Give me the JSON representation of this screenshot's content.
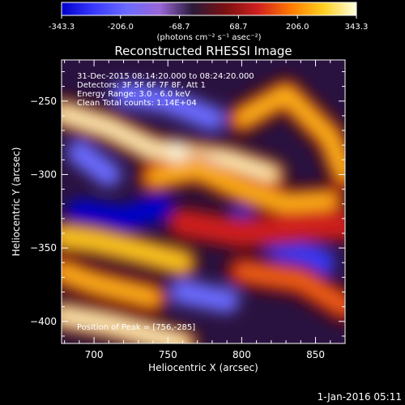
{
  "colorbar": {
    "min": -343.3,
    "max": 343.3,
    "ticks": [
      "-343.3",
      "-206.0",
      "-68.7",
      "68.7",
      "206.0",
      "343.3"
    ],
    "units": "(photons cm⁻² s⁻¹ asec⁻²)",
    "colors": [
      "#0000cc",
      "#3a3aff",
      "#6b6bff",
      "#9a66d6",
      "#2a1a3a",
      "#7a1010",
      "#d02020",
      "#ff7a00",
      "#ffd020",
      "#ffffe0"
    ]
  },
  "chart_data": {
    "type": "heatmap",
    "title": "Reconstructed RHESSI Image",
    "xlabel": "Heliocentric X (arcsec)",
    "ylabel": "Heliocentric Y (arcsec)",
    "xlim": [
      678,
      870
    ],
    "ylim": [
      -415,
      -222
    ],
    "xticks": [
      700,
      750,
      800,
      850
    ],
    "yticks": [
      -250,
      -300,
      -350,
      -400
    ],
    "xtick_labels": [
      "700",
      "750",
      "800",
      "850"
    ],
    "ytick_labels": [
      "−250",
      "−300",
      "−350",
      "−400"
    ],
    "annotations": [
      "31-Dec-2015 08:14:20.000 to 08:24:20.000",
      "Detectors: 3F 5F 6F 7F 8F, Att 1",
      "Energy Range: 3.0 - 6.0 keV",
      "Clean     Total counts: 1.14E+04"
    ],
    "peak_label": "Position of Peak = [756,-285]",
    "peak": [
      756,
      -285
    ],
    "value_range": [
      -343.3,
      343.3
    ],
    "positive_ridges": [
      {
        "x": [
          678,
          710,
          740,
          760,
          790,
          820
        ],
        "y": [
          -258,
          -268,
          -283,
          -286,
          -290,
          -300
        ],
        "value": 343.3
      },
      {
        "x": [
          800,
          830,
          860,
          870
        ],
        "y": [
          -262,
          -245,
          -275,
          -300
        ],
        "value": 280
      },
      {
        "x": [
          740,
          770,
          800,
          830,
          860
        ],
        "y": [
          -302,
          -296,
          -310,
          -320,
          -318
        ],
        "value": 230
      },
      {
        "x": [
          678,
          700,
          730,
          760
        ],
        "y": [
          -342,
          -345,
          -352,
          -360
        ],
        "value": 300
      },
      {
        "x": [
          678,
          700,
          740
        ],
        "y": [
          -366,
          -374,
          -384
        ],
        "value": 240
      },
      {
        "x": [
          678,
          710,
          740,
          760
        ],
        "y": [
          -396,
          -402,
          -410,
          -415
        ],
        "value": 343.3
      },
      {
        "x": [
          760,
          800,
          840,
          870
        ],
        "y": [
          -333,
          -340,
          -336,
          -335
        ],
        "value": 150
      },
      {
        "x": [
          800,
          840,
          870
        ],
        "y": [
          -366,
          -372,
          -390
        ],
        "value": 160
      }
    ],
    "negative_regions": [
      {
        "x": [
          690,
          720,
          745
        ],
        "y": [
          -325,
          -330,
          -322
        ],
        "value": -320
      },
      {
        "x": [
          800,
          830,
          855
        ],
        "y": [
          -330,
          -352,
          -360
        ],
        "value": -300
      },
      {
        "x": [
          720,
          750,
          780
        ],
        "y": [
          -245,
          -250,
          -262
        ],
        "value": -220
      },
      {
        "x": [
          690,
          710
        ],
        "y": [
          -285,
          -300
        ],
        "value": -200
      },
      {
        "x": [
          760,
          790
        ],
        "y": [
          -380,
          -386
        ],
        "value": -180
      }
    ]
  },
  "footer": {
    "date": "1-Jan-2016 05:11"
  }
}
